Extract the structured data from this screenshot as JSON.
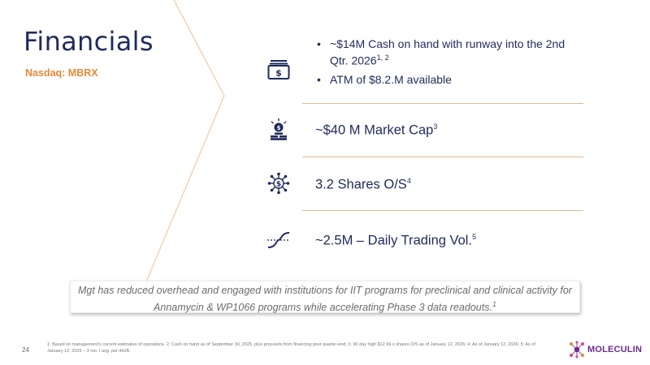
{
  "slide": {
    "title": "Financials",
    "ticker": "Nasdaq: MBRX",
    "page_number": "24"
  },
  "items": {
    "cash": {
      "icon": "cash-icon",
      "bullet1": "~$14M Cash on hand with runway into the 2nd Qtr. 2026",
      "bullet1_sup": "1, 2",
      "bullet2": "ATM of $8.2.M available"
    },
    "market_cap": {
      "icon": "coin-stack-icon",
      "text": "~$40 M Market Cap",
      "sup": "3"
    },
    "shares": {
      "icon": "network-dollar-icon",
      "text": "3.2 Shares O/S",
      "sup": "4"
    },
    "volume": {
      "icon": "trend-curve-icon",
      "text": "~2.5M – Daily Trading Vol.",
      "sup": "5"
    }
  },
  "note": "Mgt has reduced overhead and engaged with institutions for IIT programs for preclinical and clinical activity for Annamycin & WP1066 programs while accelerating Phase 3 data readouts.",
  "note_sup": "1",
  "footnote": "1: Based on management's current estimates of operations. 2: Cash on hand as of September 30, 2025, plus proceeds from financing post quarter-end; 3: 90 day high $12.99 x shares O/S as of January 12, 2026; 4: As of January 12, 2026; 5: As of January 12, 2026 – 3 mo. I avg. per iHUB.",
  "logo": {
    "text": "MOLECULIN",
    "icon": "molecule-logo-icon"
  },
  "colors": {
    "navy": "#1f2a5c",
    "orange": "#e8873a",
    "divider": "#e0b890",
    "chevron": "#f3c9a0",
    "logo_purple": "#6b2a8c"
  }
}
